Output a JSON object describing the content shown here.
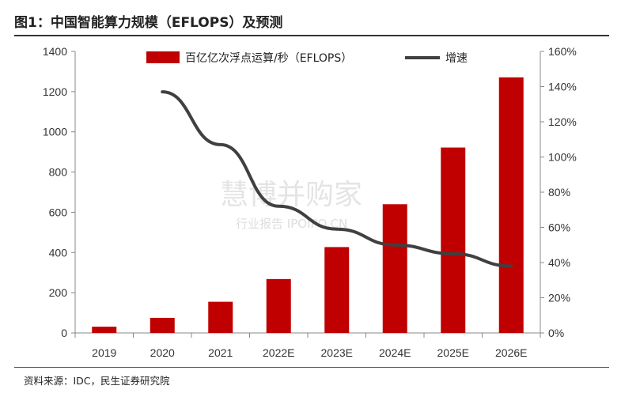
{
  "figure": {
    "title": "图1：中国智能算力规模（EFLOPS）及预测",
    "source": "资料来源：IDC，民生证券研究院"
  },
  "watermark": {
    "main": "慧博并购家",
    "sub": "行业报告 IPOIPO.CN"
  },
  "chart_data": {
    "type": "bar",
    "categories": [
      "2019",
      "2020",
      "2021",
      "2022E",
      "2023E",
      "2024E",
      "2025E",
      "2026E"
    ],
    "series": [
      {
        "name": "百亿亿次浮点运算/秒（EFLOPS）",
        "type": "bar",
        "axis": "left",
        "color": "#c00000",
        "values": [
          31,
          75,
          155,
          268,
          427,
          640,
          922,
          1271
        ]
      },
      {
        "name": "增速",
        "type": "line",
        "axis": "right",
        "color": "#404040",
        "values": [
          null,
          137,
          107,
          72,
          59,
          50,
          45,
          38
        ]
      }
    ],
    "left_axis": {
      "min": 0,
      "max": 1400,
      "ticks": [
        0,
        200,
        400,
        600,
        800,
        1000,
        1200,
        1400
      ]
    },
    "right_axis": {
      "min": 0,
      "max": 160,
      "ticks": [
        "0%",
        "20%",
        "40%",
        "60%",
        "80%",
        "100%",
        "120%",
        "140%",
        "160%"
      ]
    },
    "legend_position": "top",
    "grid": false
  }
}
